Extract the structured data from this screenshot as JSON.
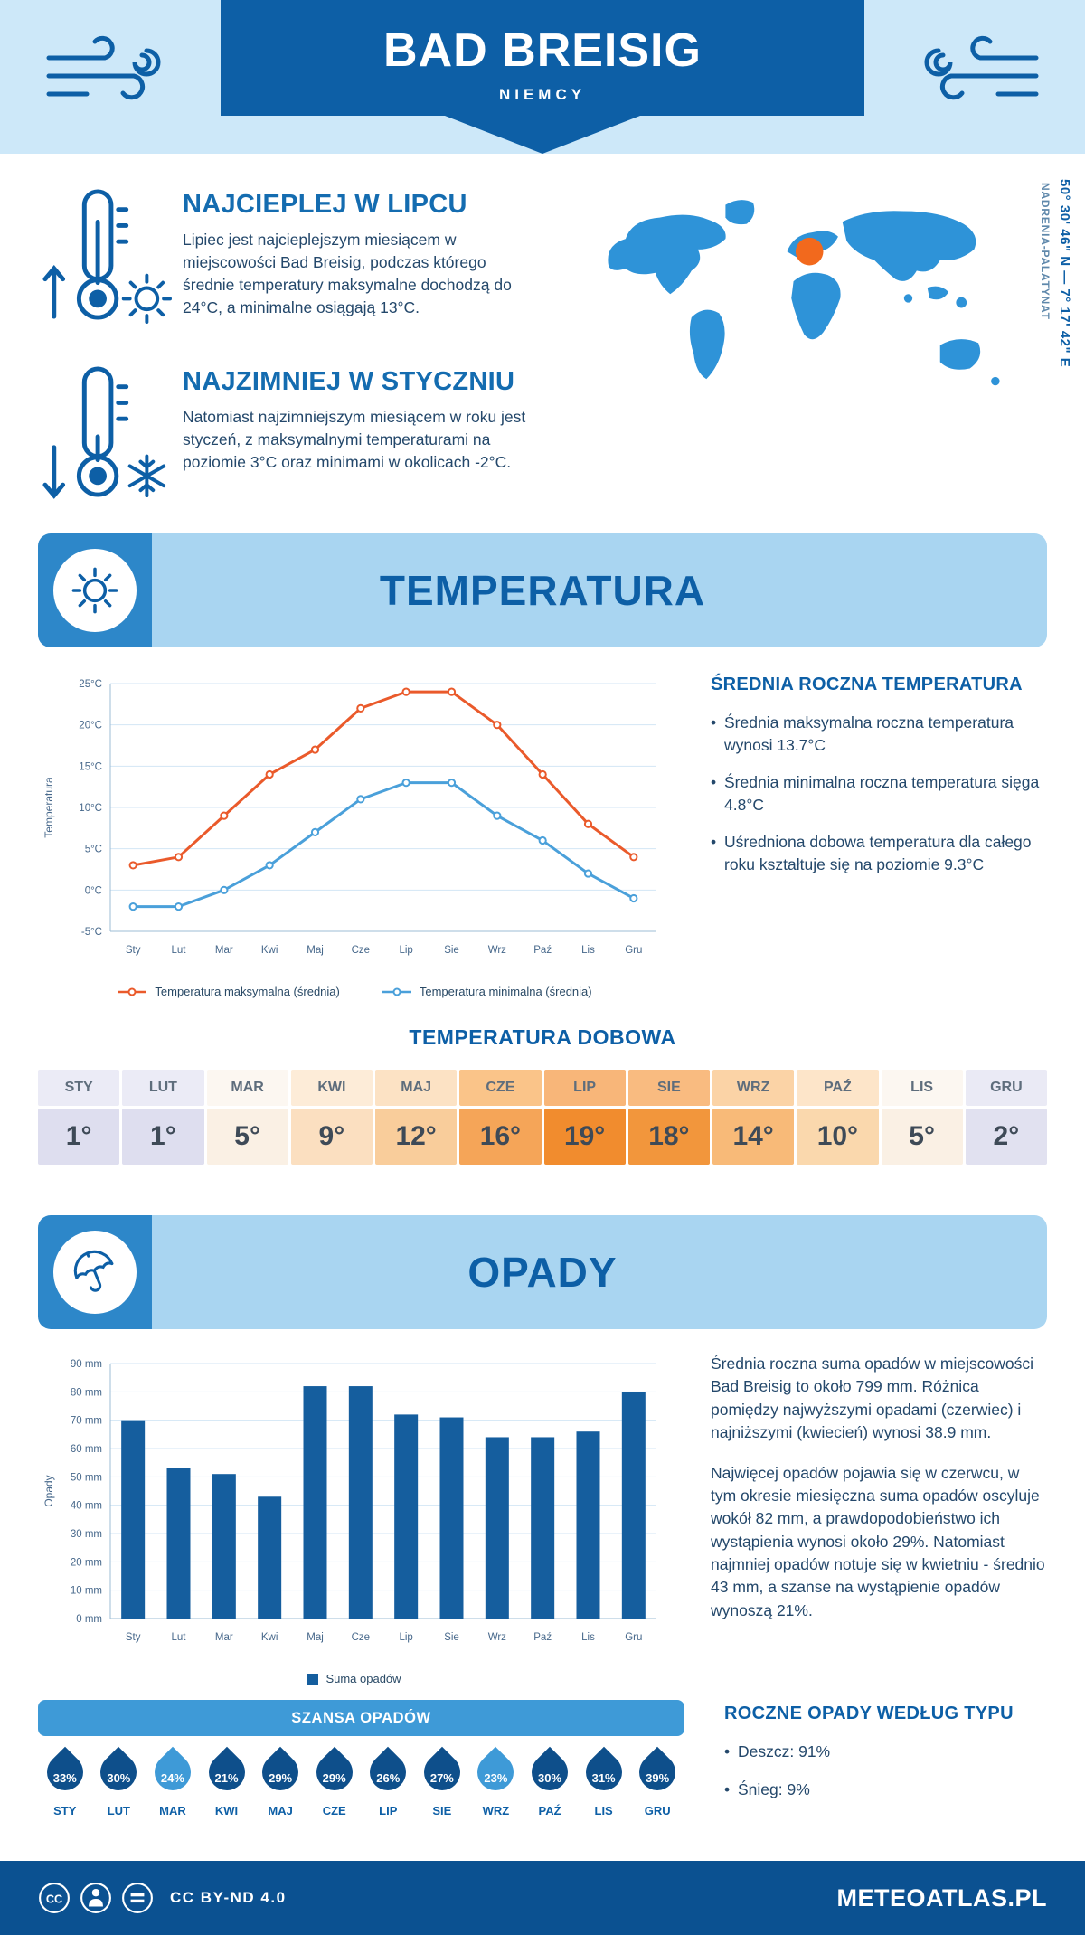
{
  "header": {
    "title": "BAD BREISIG",
    "subtitle": "NIEMCY"
  },
  "intro": {
    "warm": {
      "heading": "NAJCIEPLEJ W LIPCU",
      "text": "Lipiec jest najcieplejszym miesiącem w miejscowości Bad Breisig, podczas którego średnie temperatury maksymalne dochodzą do 24°C, a minimalne osiągają 13°C."
    },
    "cold": {
      "heading": "NAJZIMNIEJ W STYCZNIU",
      "text": "Natomiast najzimniejszym miesiącem w roku jest styczeń, z maksymalnymi temperaturami na poziomie 3°C oraz minimami w okolicach -2°C."
    },
    "coordinates": "50° 30' 46\" N — 7° 17' 42\" E",
    "region": "NADRENIA-PALATYNAT"
  },
  "temperature_section": {
    "banner_title": "TEMPERATURA",
    "summary_title": "ŚREDNIA ROCZNA TEMPERATURA",
    "bullets": [
      "Średnia maksymalna roczna temperatura wynosi 13.7°C",
      "Średnia minimalna roczna temperatura sięga 4.8°C",
      "Uśredniona dobowa temperatura dla całego roku kształtuje się na poziomie 9.3°C"
    ],
    "daily_title": "TEMPERATURA DOBOWA"
  },
  "daily_temperature": {
    "months": [
      "STY",
      "LUT",
      "MAR",
      "KWI",
      "MAJ",
      "CZE",
      "LIP",
      "SIE",
      "WRZ",
      "PAŹ",
      "LIS",
      "GRU"
    ],
    "values": [
      "1°",
      "1°",
      "5°",
      "9°",
      "12°",
      "16°",
      "19°",
      "18°",
      "14°",
      "10°",
      "5°",
      "2°"
    ],
    "header_colors": [
      "#ebebf6",
      "#ebebf6",
      "#fcf7f1",
      "#fdecd8",
      "#fce2c4",
      "#fac489",
      "#f8b679",
      "#f9bb80",
      "#fbd3a6",
      "#fde5c9",
      "#fcf7f1",
      "#eaeaf5"
    ],
    "value_colors": [
      "#dedeef",
      "#dedeef",
      "#faf0e4",
      "#fbdfc0",
      "#f9cd9b",
      "#f5a558",
      "#f18c2e",
      "#f2963c",
      "#f8ba78",
      "#fad8ad",
      "#faf0e4",
      "#e1e1f0"
    ]
  },
  "precipitation_section": {
    "banner_title": "OPADY",
    "paragraphs": [
      "Średnia roczna suma opadów w miejscowości Bad Breisig to około 799 mm. Różnica pomiędzy najwyższymi opadami (czerwiec) i najniższymi (kwiecień) wynosi 38.9 mm.",
      "Najwięcej opadów pojawia się w czerwcu, w tym okresie miesięczna suma opadów oscyluje wokół 82 mm, a prawdopodobieństwo ich wystąpienia wynosi około 29%. Natomiast najmniej opadów notuje się w kwietniu - średnio 43 mm, a szanse na wystąpienie opadów wynoszą 21%."
    ],
    "chance_title": "SZANSA OPADÓW",
    "chance": {
      "months": [
        "STY",
        "LUT",
        "MAR",
        "KWI",
        "MAJ",
        "CZE",
        "LIP",
        "SIE",
        "WRZ",
        "PAŹ",
        "LIS",
        "GRU"
      ],
      "values": [
        "33%",
        "30%",
        "24%",
        "21%",
        "29%",
        "29%",
        "26%",
        "27%",
        "23%",
        "30%",
        "31%",
        "39%"
      ],
      "drop_colors": [
        "#0e4f8b",
        "#0e4f8b",
        "#3e9ad7",
        "#0e4f8b",
        "#0e4f8b",
        "#0e4f8b",
        "#0e4f8b",
        "#0e4f8b",
        "#3e9ad7",
        "#0e4f8b",
        "#0e4f8b",
        "#0e4f8b"
      ]
    },
    "type_title": "ROCZNE OPADY WEDŁUG TYPU",
    "type_bullets": [
      "Deszcz: 91%",
      "Śnieg: 9%"
    ]
  },
  "chart_data": [
    {
      "type": "line",
      "categories": [
        "Sty",
        "Lut",
        "Mar",
        "Kwi",
        "Maj",
        "Cze",
        "Lip",
        "Sie",
        "Wrz",
        "Paź",
        "Lis",
        "Gru"
      ],
      "series": [
        {
          "name": "Temperatura maksymalna (średnia)",
          "color": "#ea5a2b",
          "values": [
            3,
            4,
            9,
            14,
            17,
            22,
            24,
            24,
            20,
            14,
            8,
            4
          ]
        },
        {
          "name": "Temperatura minimalna (średnia)",
          "color": "#4aa0da",
          "values": [
            -2,
            -2,
            0,
            3,
            7,
            11,
            13,
            13,
            9,
            6,
            2,
            -1
          ]
        }
      ],
      "title": "",
      "xlabel": "",
      "ylabel": "Temperatura",
      "ylim": [
        -5,
        25
      ],
      "ytick_step": 5,
      "ytick_suffix": "°C",
      "grid": true,
      "legend_position": "bottom"
    },
    {
      "type": "bar",
      "categories": [
        "Sty",
        "Lut",
        "Mar",
        "Kwi",
        "Maj",
        "Cze",
        "Lip",
        "Sie",
        "Wrz",
        "Paź",
        "Lis",
        "Gru"
      ],
      "series": [
        {
          "name": "Suma opadów",
          "color": "#155e9e",
          "values": [
            70,
            53,
            51,
            43,
            82,
            82,
            72,
            71,
            64,
            64,
            66,
            80
          ]
        }
      ],
      "title": "",
      "xlabel": "",
      "ylabel": "Opady",
      "ylim": [
        0,
        90
      ],
      "ytick_step": 10,
      "ytick_suffix": " mm",
      "grid": true,
      "legend_position": "bottom"
    }
  ],
  "footer": {
    "license": "CC BY-ND 4.0",
    "brand": "METEOATLAS.PL"
  },
  "colors": {
    "primary_dark": "#0d5fa6",
    "header_bg": "#cde8f9",
    "banner_tile": "#2d87c9",
    "banner_strip": "#a9d5f1",
    "max_line": "#ea5a2b",
    "min_line": "#4aa0da",
    "bar": "#155e9e",
    "chance_banner": "#3e9ad7",
    "drop_dark": "#0e4f8b",
    "drop_light": "#3e9ad7",
    "map_fill": "#2e93d8",
    "map_marker": "#f2691d",
    "footer_bg": "#0b5191"
  }
}
